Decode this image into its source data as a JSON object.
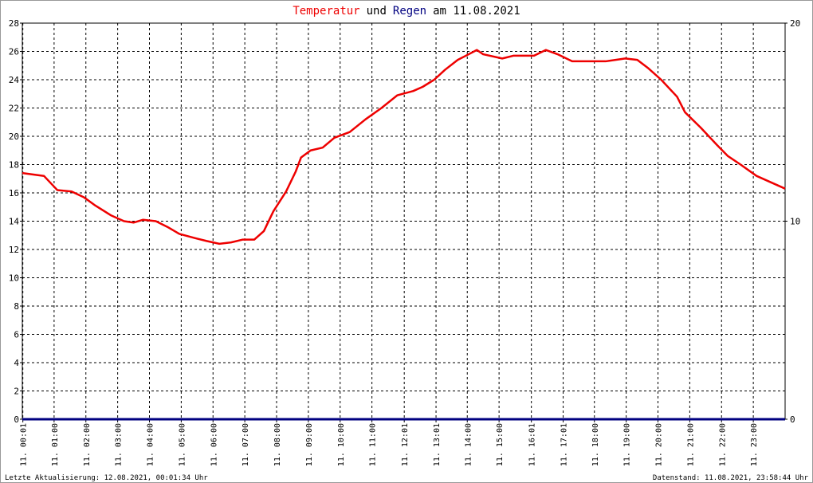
{
  "chart_data": {
    "type": "line",
    "title_parts": [
      {
        "text": "Temperatur",
        "color": "#ee0000"
      },
      {
        "text": "und",
        "color": "#000000"
      },
      {
        "text": "Regen",
        "color": "#000080"
      },
      {
        "text": "am 11.08.2021",
        "color": "#000000"
      }
    ],
    "footer_left": "Letzte Aktualisierung: 12.08.2021, 00:01:34 Uhr",
    "footer_right": "Datenstand: 11.08.2021, 23:58:44 Uhr",
    "xlim": [
      0,
      24
    ],
    "xticks": [
      {
        "value": 0.017,
        "label": "11. 00:01"
      },
      {
        "value": 1,
        "label": "11. 01:00"
      },
      {
        "value": 2,
        "label": "11. 02:00"
      },
      {
        "value": 3,
        "label": "11. 03:00"
      },
      {
        "value": 4,
        "label": "11. 04:00"
      },
      {
        "value": 5,
        "label": "11. 05:00"
      },
      {
        "value": 6,
        "label": "11. 06:00"
      },
      {
        "value": 7,
        "label": "11. 07:00"
      },
      {
        "value": 8,
        "label": "11. 08:00"
      },
      {
        "value": 9,
        "label": "11. 09:00"
      },
      {
        "value": 10,
        "label": "11. 10:00"
      },
      {
        "value": 11,
        "label": "11. 11:00"
      },
      {
        "value": 12.017,
        "label": "11. 12:01"
      },
      {
        "value": 13.017,
        "label": "11. 13:01"
      },
      {
        "value": 14,
        "label": "11. 14:00"
      },
      {
        "value": 15,
        "label": "11. 15:00"
      },
      {
        "value": 16.017,
        "label": "11. 16:01"
      },
      {
        "value": 17.017,
        "label": "11. 17:01"
      },
      {
        "value": 18,
        "label": "11. 18:00"
      },
      {
        "value": 19,
        "label": "11. 19:00"
      },
      {
        "value": 20,
        "label": "11. 20:00"
      },
      {
        "value": 21,
        "label": "11. 21:00"
      },
      {
        "value": 22,
        "label": "11. 22:00"
      },
      {
        "value": 23,
        "label": "11. 23:00"
      }
    ],
    "ylim": [
      0,
      28
    ],
    "yticks": [
      0,
      2,
      4,
      6,
      8,
      10,
      12,
      14,
      16,
      18,
      20,
      22,
      24,
      26,
      28
    ],
    "y2lim": [
      0,
      20
    ],
    "y2ticks": [
      0,
      10,
      20
    ],
    "grid": true,
    "series": [
      {
        "name": "Temperatur",
        "color": "#ee0000",
        "x": [
          0,
          0.68,
          1.1,
          1.55,
          1.93,
          2.3,
          2.8,
          3.2,
          3.5,
          3.8,
          4.2,
          4.56,
          4.94,
          5.44,
          5.8,
          6.2,
          6.57,
          6.94,
          7.3,
          7.6,
          7.9,
          8.3,
          8.6,
          8.77,
          9.07,
          9.45,
          9.82,
          10.3,
          10.8,
          11.3,
          11.8,
          12.3,
          12.6,
          12.96,
          13.3,
          13.7,
          13.96,
          14.3,
          14.5,
          15.1,
          15.46,
          16.1,
          16.47,
          16.84,
          17.3,
          18.35,
          18.97,
          19.35,
          19.7,
          20.1,
          20.6,
          20.85,
          21.35,
          21.85,
          22.2,
          22.6,
          23.1,
          23.5,
          24
        ],
        "values": [
          17.4,
          17.2,
          16.2,
          16.1,
          15.7,
          15.1,
          14.4,
          14.0,
          13.9,
          14.1,
          14.0,
          13.6,
          13.1,
          12.8,
          12.6,
          12.4,
          12.5,
          12.7,
          12.7,
          13.3,
          14.7,
          16.1,
          17.5,
          18.5,
          19.0,
          19.2,
          19.9,
          20.3,
          21.2,
          22.0,
          22.9,
          23.2,
          23.5,
          24.0,
          24.7,
          25.4,
          25.7,
          26.1,
          25.8,
          25.5,
          25.7,
          25.7,
          26.1,
          25.8,
          25.3,
          25.3,
          25.5,
          25.4,
          24.8,
          24.0,
          22.8,
          21.7,
          20.6,
          19.4,
          18.6,
          18.0,
          17.2,
          16.8,
          16.3
        ]
      },
      {
        "name": "Regen",
        "color": "#000080",
        "axis": "y2",
        "x": [
          0,
          24
        ],
        "values": [
          0,
          0
        ]
      }
    ]
  }
}
